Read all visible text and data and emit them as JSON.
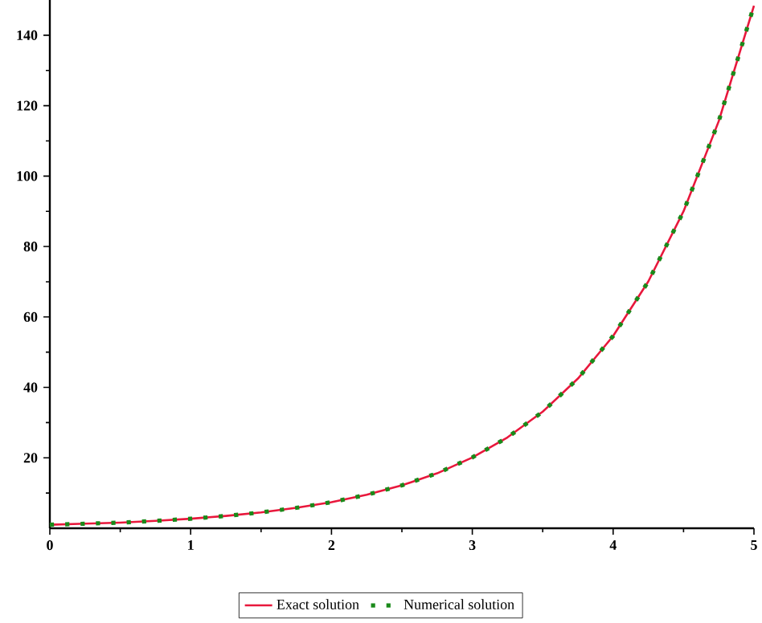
{
  "chart_data": {
    "type": "line",
    "x": [
      0,
      0.25,
      0.5,
      0.75,
      1,
      1.25,
      1.5,
      1.75,
      2,
      2.25,
      2.5,
      2.75,
      3,
      3.25,
      3.5,
      3.75,
      4,
      4.25,
      4.5,
      4.75,
      5
    ],
    "series": [
      {
        "name": "Exact solution",
        "color": "#e8183c",
        "line_style": "solid",
        "values": [
          1,
          1.3,
          1.6,
          2.1,
          2.7,
          3.5,
          4.5,
          5.8,
          7.4,
          9.5,
          12.2,
          15.6,
          20.1,
          25.8,
          33.1,
          42.5,
          54.6,
          70.1,
          90,
          115.6,
          148.4
        ]
      },
      {
        "name": "Numerical solution",
        "color": "#1a8a1a",
        "line_style": "dotted",
        "values": [
          1,
          1.3,
          1.6,
          2.1,
          2.7,
          3.5,
          4.5,
          5.8,
          7.4,
          9.5,
          12.2,
          15.6,
          20.1,
          25.8,
          33.1,
          42.5,
          54.6,
          70.1,
          90,
          115.6,
          148.4
        ]
      }
    ],
    "xlim": [
      0,
      5
    ],
    "ylim": [
      0,
      150
    ],
    "xticks": [
      0,
      {
        "value": 0.5,
        "label": null
      },
      1,
      {
        "value": 1.5,
        "label": null
      },
      2,
      {
        "value": 2.5,
        "label": null
      },
      3,
      {
        "value": 3.5,
        "label": null
      },
      4,
      {
        "value": 4.5,
        "label": null
      },
      5
    ],
    "yticks": [
      {
        "value": 10,
        "label": null
      },
      20,
      {
        "value": 30,
        "label": null
      },
      40,
      {
        "value": 50,
        "label": null
      },
      60,
      {
        "value": 70,
        "label": null
      },
      80,
      {
        "value": 90,
        "label": null
      },
      100,
      {
        "value": 110,
        "label": null
      },
      120,
      {
        "value": 130,
        "label": null
      },
      140
    ],
    "grid": false,
    "legend": "bottom",
    "marker": "none"
  }
}
